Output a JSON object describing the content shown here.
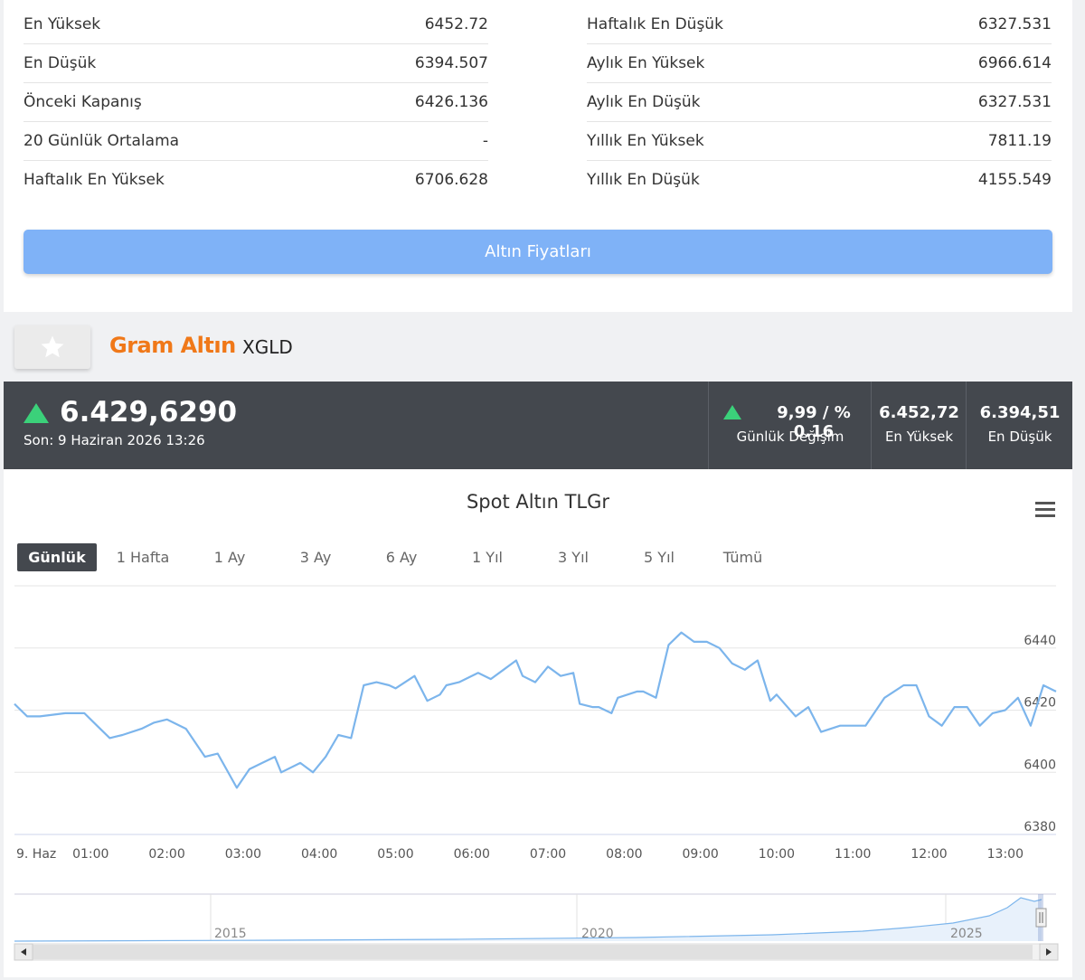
{
  "stats": {
    "left": [
      {
        "label": "En Yüksek",
        "value": "6452.72"
      },
      {
        "label": "En Düşük",
        "value": "6394.507"
      },
      {
        "label": "Önceki Kapanış",
        "value": "6426.136"
      },
      {
        "label": "20 Günlük Ortalama",
        "value": "-"
      },
      {
        "label": "Haftalık En Yüksek",
        "value": "6706.628"
      }
    ],
    "right": [
      {
        "label": "Haftalık En Düşük",
        "value": "6327.531"
      },
      {
        "label": "Aylık En Yüksek",
        "value": "6966.614"
      },
      {
        "label": "Aylık En Düşük",
        "value": "6327.531"
      },
      {
        "label": "Yıllık En Yüksek",
        "value": "7811.19"
      },
      {
        "label": "Yıllık En Düşük",
        "value": "4155.549"
      }
    ]
  },
  "gold_prices_button": "Altın Fiyatları",
  "asset": {
    "name": "Gram Altın",
    "code": "XGLD"
  },
  "price_bar": {
    "price": "6.429,6290",
    "last_update": "Son: 9 Haziran 2026 13:26",
    "change_value": "9,99 / % 0.16",
    "change_label": "Günlük Değişim",
    "high_value": "6.452,72",
    "high_label": "En Yüksek",
    "low_value": "6.394,51",
    "low_label": "En Düşük",
    "up_color": "#3bd17a"
  },
  "chart": {
    "title": "Spot Altın TLGr",
    "ranges": [
      "Günlük",
      "1 Hafta",
      "1 Ay",
      "3 Ay",
      "6 Ay",
      "1 Yıl",
      "3 Yıl",
      "5 Yıl",
      "Tümü"
    ],
    "active_range": "Günlük",
    "line_color": "#7cb5ec"
  },
  "chart_data": {
    "type": "line",
    "title": "Spot Altın TLGr",
    "ylim": [
      6380,
      6460
    ],
    "y_ticks": [
      "6380",
      "6400",
      "6420",
      "6440"
    ],
    "x_ticks": [
      "9. Haz",
      "01:00",
      "02:00",
      "03:00",
      "04:00",
      "05:00",
      "06:00",
      "07:00",
      "08:00",
      "09:00",
      "10:00",
      "11:00",
      "12:00",
      "13:00"
    ],
    "x_range_minutes": [
      0,
      820
    ],
    "series": [
      {
        "x": [
          0,
          10,
          20,
          40,
          55,
          65,
          75,
          85,
          100,
          110,
          120,
          135,
          150,
          160,
          175,
          185,
          195,
          205,
          210,
          225,
          235,
          245,
          255,
          265,
          275,
          285,
          295,
          300,
          315,
          325,
          335,
          340,
          350,
          365,
          375,
          385,
          395,
          400,
          410,
          420,
          430,
          440,
          445,
          455,
          460,
          470,
          475,
          490,
          495,
          505,
          515,
          525,
          535,
          545,
          555,
          565,
          575,
          585,
          595,
          600,
          615,
          625,
          635,
          650,
          660,
          670,
          685,
          700,
          710,
          720,
          730,
          740,
          750,
          760,
          770,
          780,
          790,
          800,
          810,
          820
        ],
        "y": [
          6422,
          6418,
          6418,
          6419,
          6419,
          6415,
          6411,
          6412,
          6414,
          6416,
          6417,
          6414,
          6405,
          6406,
          6395,
          6401,
          6403,
          6405,
          6400,
          6403,
          6400,
          6405,
          6412,
          6411,
          6428,
          6429,
          6428,
          6427,
          6431,
          6423,
          6425,
          6428,
          6429,
          6432,
          6430,
          6433,
          6436,
          6431,
          6429,
          6434,
          6431,
          6432,
          6422,
          6421,
          6421,
          6419,
          6424,
          6426,
          6426,
          6424,
          6441,
          6445,
          6442,
          6442,
          6440,
          6435,
          6433,
          6436,
          6423,
          6425,
          6418,
          6421,
          6413,
          6415,
          6415,
          6415,
          6424,
          6428,
          6428,
          6418,
          6415,
          6421,
          6421,
          6415,
          6419,
          6420,
          6424,
          6415,
          6428,
          6426
        ]
      }
    ]
  },
  "navigator": {
    "year_labels": [
      "2015",
      "2020",
      "2025"
    ]
  }
}
